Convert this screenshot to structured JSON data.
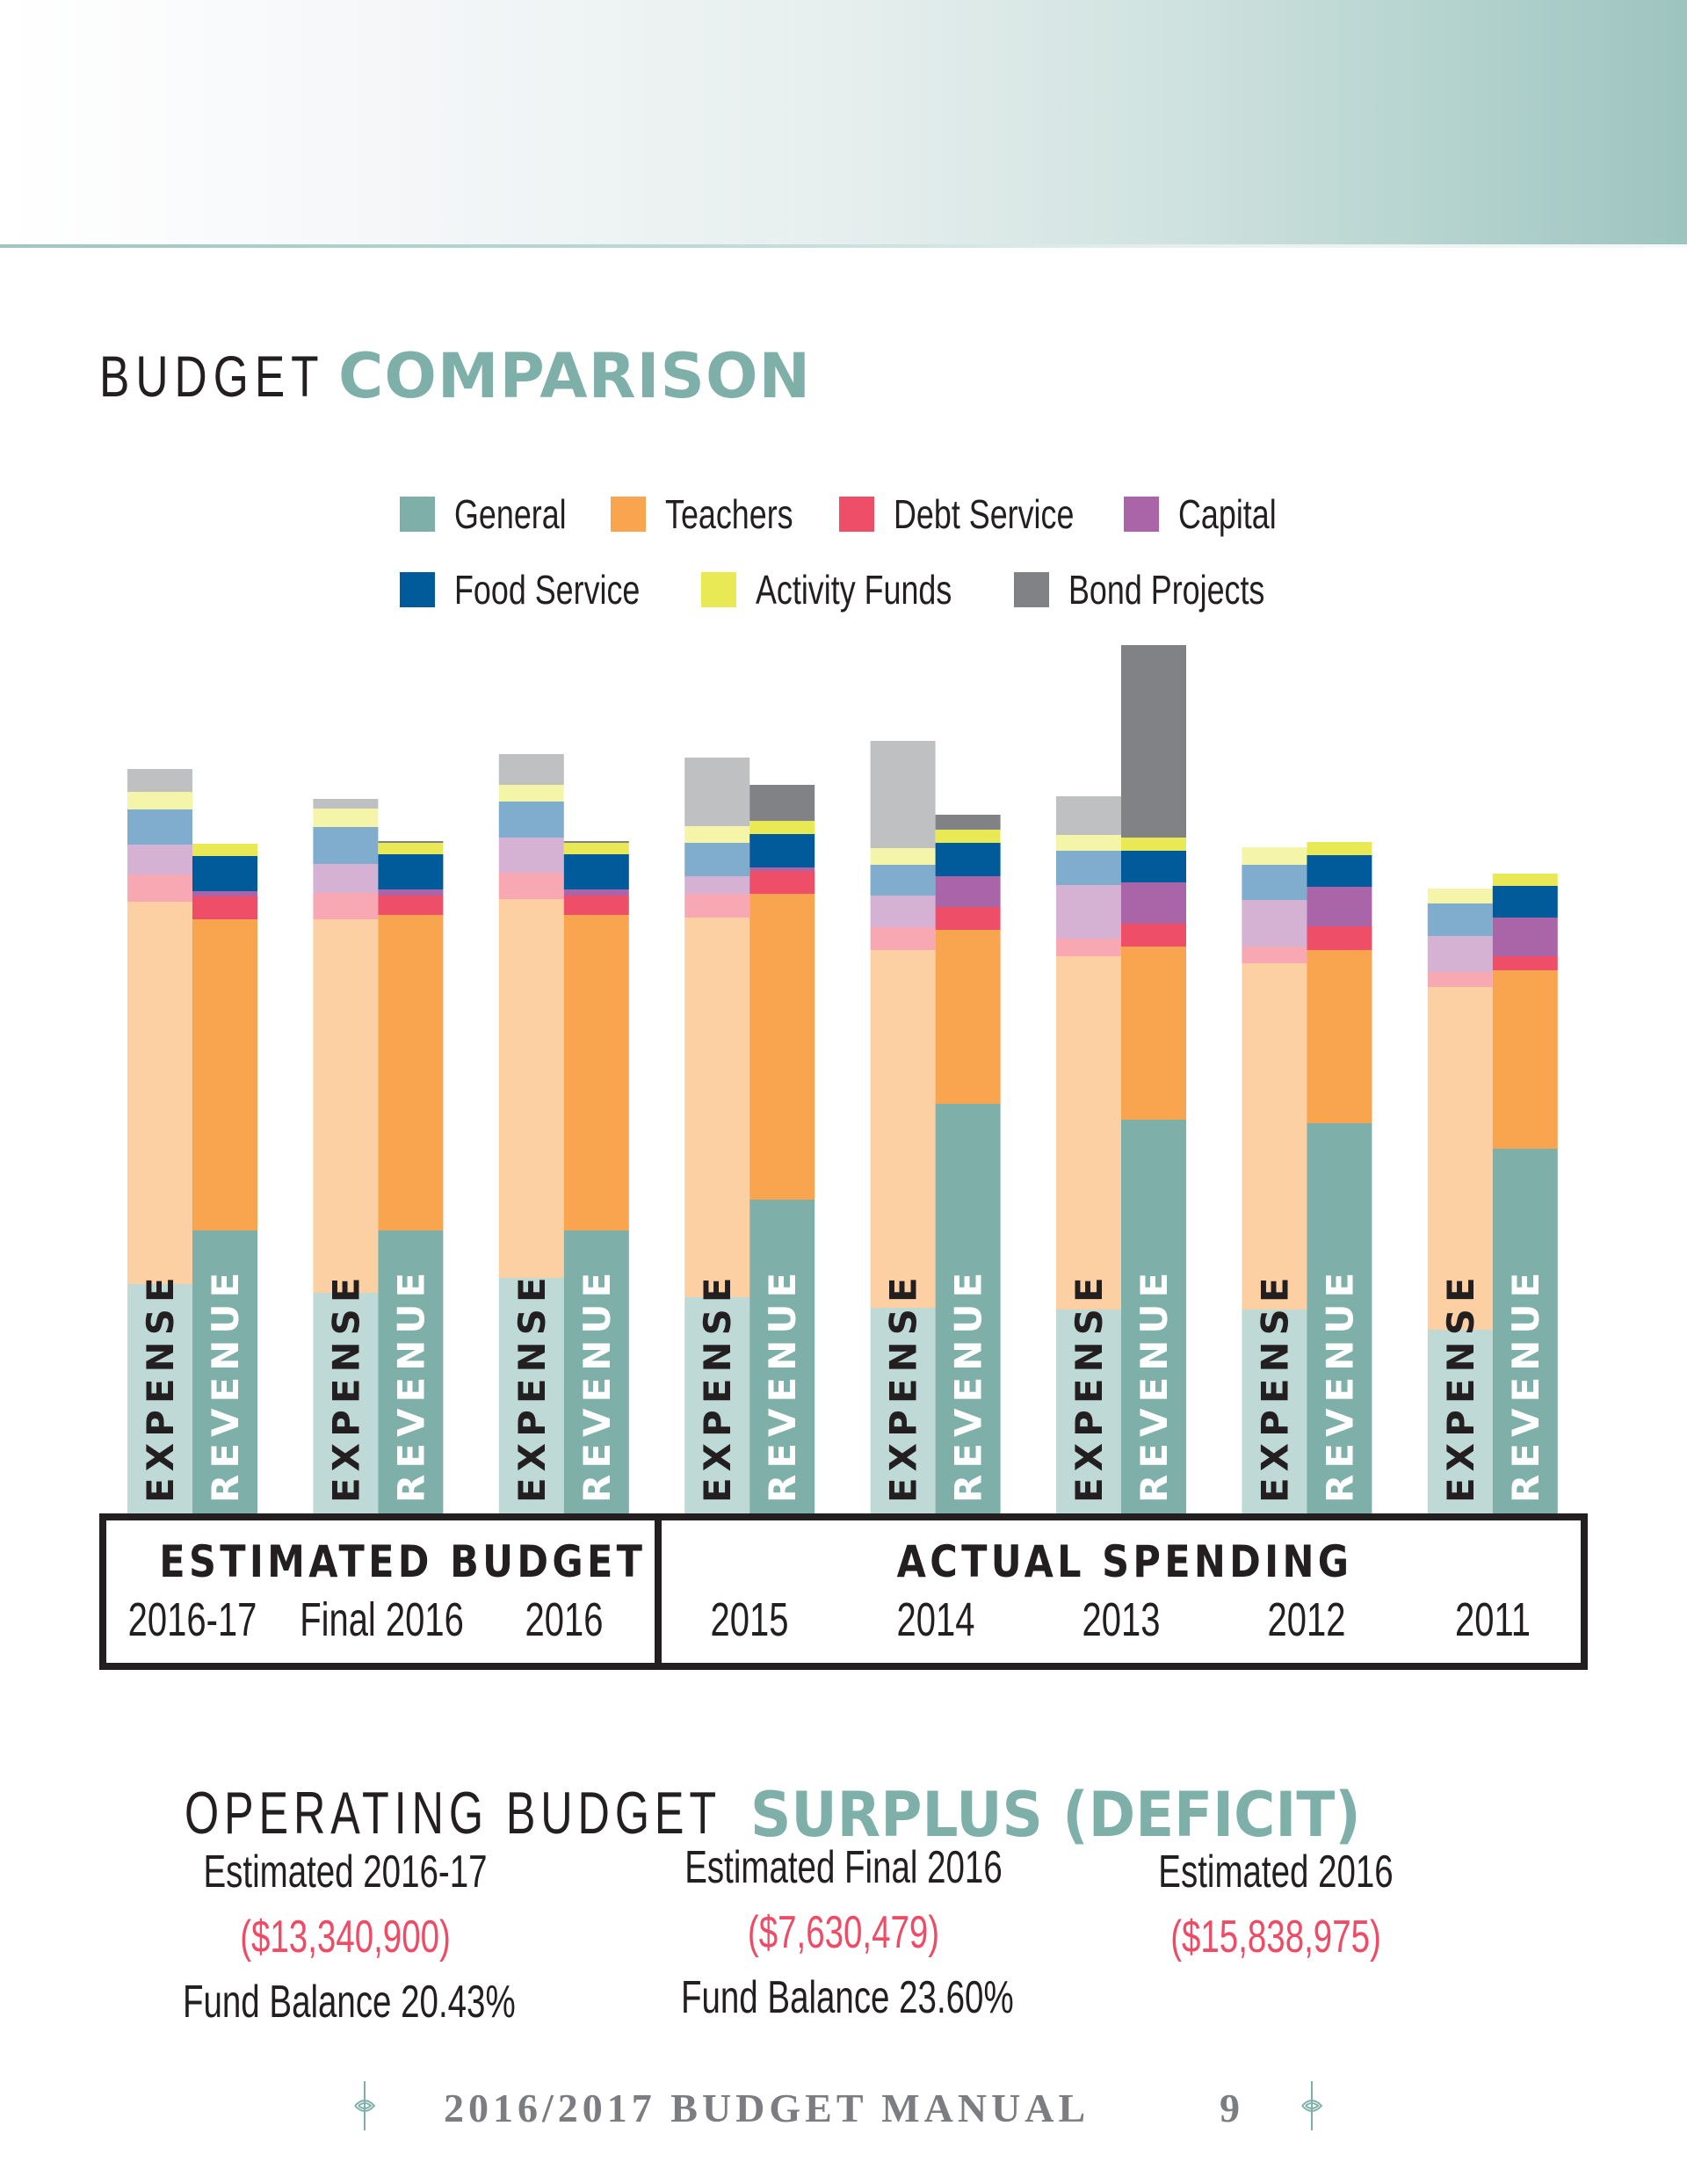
{
  "page": {
    "title_light": "BUDGET",
    "title_bold": "COMPARISON",
    "accent_color": "#7eb0a9"
  },
  "legend": [
    {
      "label": "General",
      "color": "#7eb0a9"
    },
    {
      "label": "Teachers",
      "color": "#f9a44e"
    },
    {
      "label": "Debt Service",
      "color": "#ee4e68"
    },
    {
      "label": "Capital",
      "color": "#a965a8"
    },
    {
      "label": "Food Service",
      "color": "#015a9a"
    },
    {
      "label": "Activity Funds",
      "color": "#e8e954"
    },
    {
      "label": "Bond Projects",
      "color": "#808285"
    }
  ],
  "chart_data": {
    "type": "bar",
    "stacked": true,
    "title": "Budget Comparison",
    "value_units": "relative (no axis shown; proportional bar heights)",
    "categories": [
      "2016-17",
      "Final 2016",
      "2016",
      "2015",
      "2014",
      "2013",
      "2012",
      "2011"
    ],
    "category_groups": [
      {
        "label": "ESTIMATED BUDGET",
        "categories": [
          "2016-17",
          "Final 2016",
          "2016"
        ]
      },
      {
        "label": "ACTUAL SPENDING",
        "categories": [
          "2015",
          "2014",
          "2013",
          "2012",
          "2011"
        ]
      }
    ],
    "bar_types": [
      "EXPENSE",
      "REVENUE"
    ],
    "segment_order": [
      "General",
      "Teachers",
      "Debt Service",
      "Capital",
      "Food Service",
      "Activity Funds",
      "Bond Projects"
    ],
    "expense_colors": [
      "#bfdad6",
      "#fdd0a4",
      "#f7a8b2",
      "#d5b1d3",
      "#80adcd",
      "#f4f5a9",
      "#bfc0c2"
    ],
    "revenue_colors": [
      "#7eb0a9",
      "#f9a44e",
      "#ee4e68",
      "#a965a8",
      "#015a9a",
      "#e8e954",
      "#808285"
    ],
    "expense": [
      [
        261,
        435,
        31,
        34,
        40,
        20,
        26
      ],
      [
        251,
        425,
        30,
        33,
        42,
        21,
        11
      ],
      [
        268,
        431,
        30,
        40,
        41,
        19,
        35
      ],
      [
        246,
        432,
        27,
        20,
        38,
        19,
        78
      ],
      [
        234,
        407,
        26,
        36,
        35,
        19,
        122
      ],
      [
        232,
        402,
        20,
        61,
        39,
        18,
        44
      ],
      [
        232,
        394,
        19,
        53,
        40,
        20,
        0
      ],
      [
        209,
        390,
        17,
        41,
        37,
        17,
        0
      ]
    ],
    "revenue": [
      [
        322,
        354,
        26,
        6,
        40,
        14,
        0
      ],
      [
        322,
        359,
        22,
        7,
        40,
        13,
        2
      ],
      [
        322,
        359,
        22,
        7,
        40,
        13,
        2
      ],
      [
        357,
        348,
        26,
        4,
        38,
        15,
        41
      ],
      [
        466,
        198,
        26,
        35,
        38,
        15,
        17
      ],
      [
        448,
        197,
        26,
        47,
        36,
        15,
        219
      ],
      [
        444,
        197,
        27,
        45,
        36,
        15,
        0
      ],
      [
        415,
        203,
        16,
        44,
        36,
        14,
        0
      ]
    ],
    "ylim": [
      0,
      1000
    ],
    "grid": false,
    "legend_position": "top"
  },
  "operating": {
    "title_light": "OPERATING BUDGET",
    "title_bold": "SURPLUS (DEFICIT)",
    "columns": [
      {
        "label": "Estimated 2016-17",
        "amount": "($13,340,900)",
        "fund_balance": "Fund Balance 20.43%"
      },
      {
        "label": "Estimated Final 2016",
        "amount": "($7,630,479)",
        "fund_balance": "Fund Balance 23.60%"
      },
      {
        "label": "Estimated 2016",
        "amount": "($15,838,975)",
        "fund_balance": ""
      }
    ],
    "deficit_color": "#ee4c66"
  },
  "footer": {
    "text": "2016/2017 BUDGET MANUAL",
    "page_number": "9",
    "ornament_icon": "fleur-ornament-icon"
  }
}
